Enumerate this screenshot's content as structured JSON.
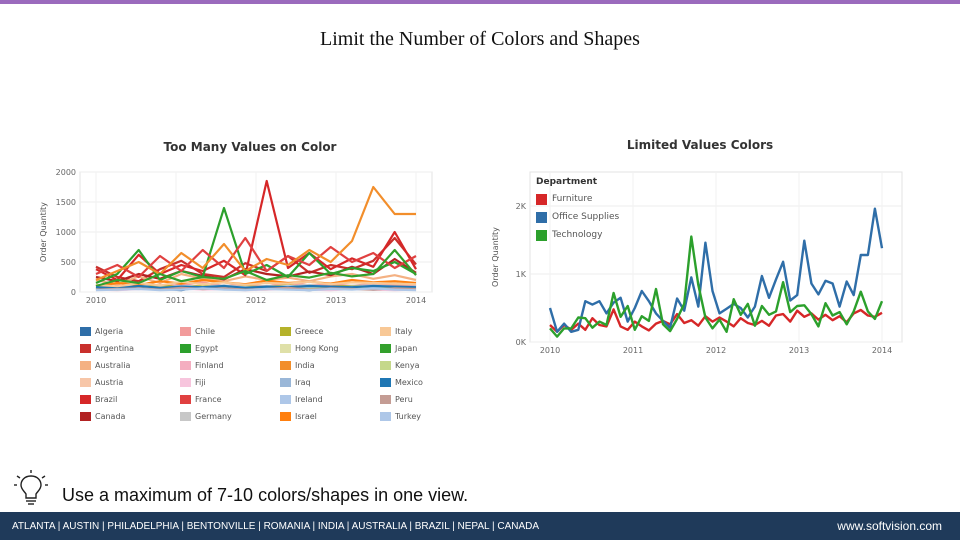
{
  "slide": {
    "title": "Limit the Number of Colors and Shapes",
    "tip": "Use a maximum of 7-10 colors/shapes in one view.",
    "footer_cities": "ATLANTA | AUSTIN | PHILADELPHIA | BENTONVILLE | ROMANIA | INDIA | AUSTRALIA | BRAZIL | NEPAL | CANADA",
    "footer_url": "www.softvision.com",
    "accent_color": "#9b6bbd",
    "footer_color": "#1f3a5a"
  },
  "chart_data": [
    {
      "type": "line",
      "title": "Too Many Values on Color",
      "xlabel": "",
      "ylabel": "Order Quantity",
      "x_ticks": [
        "2010",
        "2011",
        "2012",
        "2013",
        "2014"
      ],
      "y_ticks": [
        "0",
        "500",
        "1000",
        "1500",
        "2000"
      ],
      "ylim": [
        0,
        2000
      ],
      "xlim": [
        2010,
        2014
      ],
      "legend_placement": "bottom",
      "series": [
        {
          "name": "Algeria",
          "color": "#2f6ea8",
          "values": [
            60,
            40,
            80,
            50,
            30,
            90,
            60,
            40,
            70,
            50,
            30,
            60,
            80,
            40,
            60,
            50
          ]
        },
        {
          "name": "Argentina",
          "color": "#c9302c",
          "values": [
            420,
            250,
            180,
            380,
            520,
            300,
            250,
            480,
            350,
            600,
            320,
            450,
            380,
            520,
            900,
            460
          ]
        },
        {
          "name": "Australia",
          "color": "#f4b183",
          "values": [
            200,
            120,
            260,
            150,
            300,
            220,
            180,
            260,
            200,
            240,
            180,
            260,
            300,
            220,
            280,
            200
          ]
        },
        {
          "name": "Austria",
          "color": "#f7c6a8",
          "values": [
            80,
            60,
            120,
            90,
            70,
            110,
            80,
            60,
            90,
            120,
            70,
            100,
            80,
            90,
            70,
            60
          ]
        },
        {
          "name": "Brazil",
          "color": "#d62728",
          "values": [
            380,
            200,
            620,
            300,
            450,
            350,
            520,
            280,
            1850,
            400,
            650,
            380,
            560,
            420,
            1000,
            380
          ]
        },
        {
          "name": "Canada",
          "color": "#b22222",
          "values": [
            250,
            180,
            300,
            220,
            350,
            270,
            210,
            380,
            300,
            260,
            340,
            280,
            420,
            300,
            550,
            320
          ]
        },
        {
          "name": "Chile",
          "color": "#f29b9b",
          "values": [
            100,
            80,
            140,
            90,
            120,
            160,
            100,
            130,
            90,
            150,
            110,
            130,
            100,
            140,
            120,
            100
          ]
        },
        {
          "name": "Egypt",
          "color": "#2ca02c",
          "values": [
            150,
            300,
            700,
            200,
            350,
            250,
            1400,
            300,
            450,
            250,
            650,
            300,
            400,
            350,
            500,
            300
          ]
        },
        {
          "name": "Finland",
          "color": "#f4aec0",
          "values": [
            70,
            50,
            90,
            60,
            80,
            70,
            90,
            60,
            80,
            70,
            60,
            90,
            70,
            80,
            60,
            70
          ]
        },
        {
          "name": "Fiji",
          "color": "#f7c5dd",
          "values": [
            40,
            30,
            50,
            40,
            60,
            40,
            50,
            30,
            40,
            50,
            40,
            30,
            50,
            40,
            30,
            40
          ]
        },
        {
          "name": "France",
          "color": "#e04040",
          "values": [
            300,
            450,
            250,
            600,
            350,
            700,
            400,
            900,
            350,
            600,
            450,
            750,
            500,
            650,
            400,
            600
          ]
        },
        {
          "name": "Germany",
          "color": "#c7c7c7",
          "values": [
            90,
            70,
            120,
            80,
            100,
            90,
            110,
            80,
            100,
            90,
            120,
            80,
            100,
            110,
            90,
            80
          ]
        },
        {
          "name": "Greece",
          "color": "#b5b22a",
          "values": [
            60,
            90,
            70,
            110,
            80,
            100,
            70,
            90,
            80,
            110,
            70,
            90,
            100,
            80,
            90,
            70
          ]
        },
        {
          "name": "Hong Kong",
          "color": "#dfe0a8",
          "values": [
            50,
            70,
            60,
            80,
            60,
            90,
            70,
            60,
            80,
            70,
            60,
            80,
            70,
            60,
            80,
            70
          ]
        },
        {
          "name": "India",
          "color": "#f28e2b",
          "values": [
            200,
            350,
            500,
            300,
            650,
            400,
            800,
            350,
            550,
            450,
            700,
            500,
            850,
            1750,
            1300,
            1300
          ]
        },
        {
          "name": "Iraq",
          "color": "#9ab7d8",
          "values": [
            40,
            60,
            50,
            70,
            50,
            80,
            60,
            50,
            70,
            60,
            50,
            70,
            60,
            50,
            70,
            60
          ]
        },
        {
          "name": "Ireland",
          "color": "#aec7e8",
          "values": [
            70,
            90,
            80,
            60,
            100,
            70,
            90,
            80,
            70,
            100,
            80,
            70,
            90,
            80,
            70,
            90
          ]
        },
        {
          "name": "Israel",
          "color": "#ff7f0e",
          "values": [
            100,
            150,
            120,
            180,
            140,
            200,
            160,
            130,
            190,
            150,
            170,
            140,
            200,
            160,
            180,
            150
          ]
        },
        {
          "name": "Italy",
          "color": "#f8c896",
          "values": [
            120,
            90,
            150,
            110,
            170,
            130,
            160,
            120,
            150,
            140,
            170,
            130,
            160,
            150,
            140,
            130
          ]
        },
        {
          "name": "Japan",
          "color": "#33a02c",
          "values": [
            100,
            200,
            150,
            300,
            180,
            250,
            220,
            350,
            200,
            280,
            240,
            320,
            260,
            300,
            700,
            280
          ]
        },
        {
          "name": "Kenya",
          "color": "#c5d88a",
          "values": [
            50,
            40,
            60,
            50,
            70,
            50,
            60,
            40,
            50,
            60,
            50,
            70,
            60,
            50,
            60,
            50
          ]
        },
        {
          "name": "Mexico",
          "color": "#1f77b4",
          "values": [
            80,
            60,
            100,
            70,
            90,
            80,
            100,
            70,
            90,
            80,
            100,
            90,
            80,
            100,
            90,
            80
          ]
        },
        {
          "name": "Peru",
          "color": "#c49c94",
          "values": [
            40,
            50,
            60,
            40,
            70,
            50,
            60,
            40,
            50,
            70,
            40,
            60,
            50,
            40,
            60,
            50
          ]
        },
        {
          "name": "Turkey",
          "color": "#aec7e8",
          "values": [
            30,
            40,
            50,
            30,
            40,
            60,
            40,
            30,
            50,
            40,
            30,
            50,
            40,
            60,
            40,
            30
          ]
        }
      ]
    },
    {
      "type": "line",
      "title": "Limited Values Colors",
      "xlabel": "",
      "ylabel": "Order Quantity",
      "x_ticks": [
        "2010",
        "2011",
        "2012",
        "2013",
        "2014"
      ],
      "y_ticks": [
        "0K",
        "1K",
        "2K"
      ],
      "ylim": [
        0,
        2500
      ],
      "xlim": [
        2010,
        2014
      ],
      "legend_title": "Department",
      "legend_placement": "top-left",
      "series": [
        {
          "name": "Furniture",
          "color": "#d62728",
          "values": [
            250,
            150,
            250,
            180,
            270,
            180,
            350,
            250,
            230,
            480,
            230,
            180,
            300,
            230,
            170,
            270,
            310,
            260,
            410,
            280,
            320,
            240,
            380,
            300,
            360,
            300,
            230,
            350,
            280,
            250,
            310,
            240,
            390,
            410,
            300,
            460,
            370,
            420,
            330,
            400,
            320,
            380,
            290,
            420,
            470,
            390,
            370,
            430
          ]
        },
        {
          "name": "Office Supplies",
          "color": "#2f6ea8",
          "values": [
            500,
            150,
            270,
            150,
            180,
            600,
            550,
            600,
            420,
            580,
            650,
            300,
            500,
            750,
            600,
            420,
            310,
            210,
            640,
            460,
            950,
            520,
            1460,
            750,
            420,
            490,
            560,
            500,
            360,
            520,
            970,
            650,
            920,
            1180,
            610,
            690,
            1490,
            860,
            700,
            900,
            860,
            520,
            890,
            690,
            1280,
            1280,
            1960,
            1380
          ]
        },
        {
          "name": "Technology",
          "color": "#2ca02c",
          "values": [
            200,
            80,
            200,
            200,
            360,
            350,
            210,
            300,
            250,
            720,
            370,
            530,
            180,
            380,
            310,
            780,
            260,
            160,
            340,
            560,
            1550,
            840,
            360,
            200,
            330,
            150,
            630,
            400,
            560,
            240,
            530,
            400,
            450,
            880,
            440,
            530,
            540,
            410,
            230,
            570,
            390,
            440,
            260,
            450,
            740,
            450,
            340,
            600
          ]
        }
      ]
    }
  ]
}
